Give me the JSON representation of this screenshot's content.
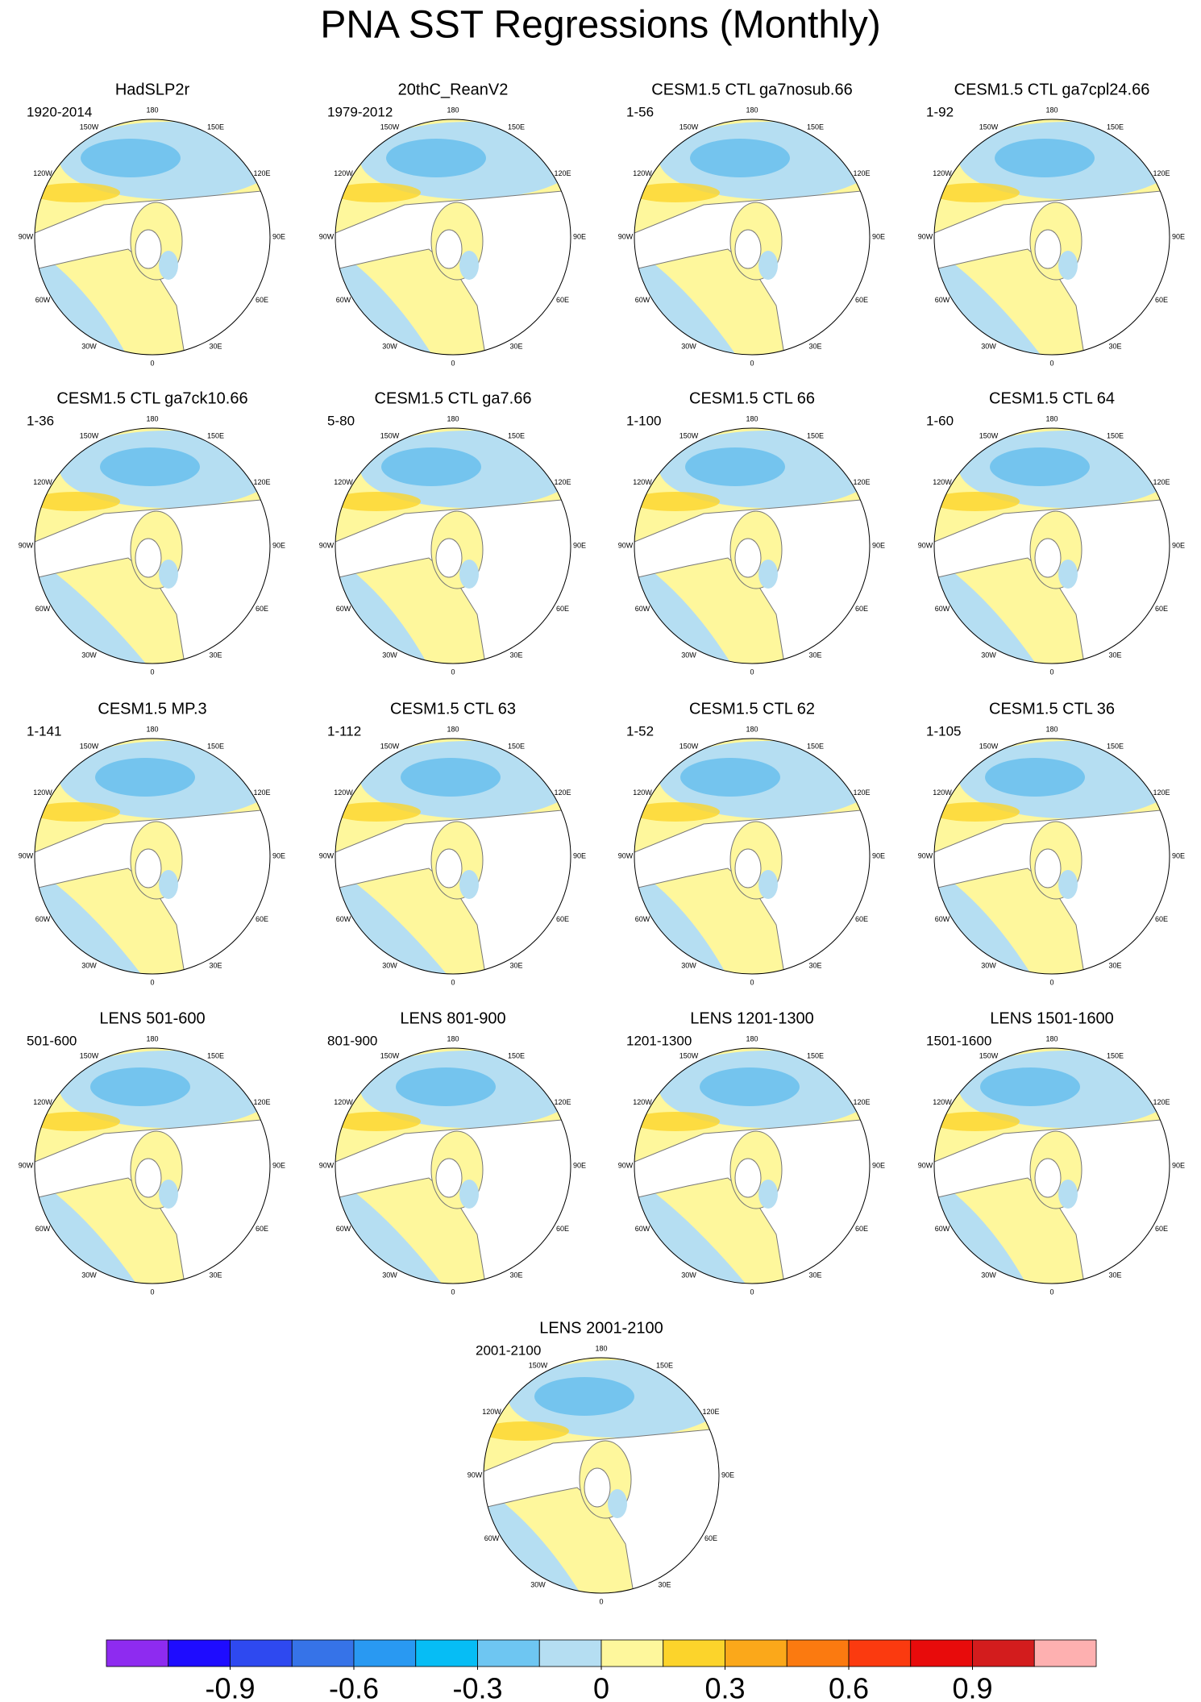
{
  "title": "PNA SST Regressions (Monthly)",
  "longitude_labels": [
    "180",
    "150E",
    "120E",
    "90E",
    "60E",
    "30E",
    "0",
    "30W",
    "60W",
    "90W",
    "120W",
    "150W"
  ],
  "panels": [
    {
      "title": "HadSLP2r",
      "period": "1920-2014"
    },
    {
      "title": "20thC_ReanV2",
      "period": "1979-2012"
    },
    {
      "title": "CESM1.5 CTL ga7nosub.66",
      "period": "1-56"
    },
    {
      "title": "CESM1.5 CTL ga7cpl24.66",
      "period": "1-92"
    },
    {
      "title": "CESM1.5 CTL ga7ck10.66",
      "period": "1-36"
    },
    {
      "title": "CESM1.5 CTL ga7.66",
      "period": "5-80"
    },
    {
      "title": "CESM1.5 CTL 66",
      "period": "1-100"
    },
    {
      "title": "CESM1.5 CTL 64",
      "period": "1-60"
    },
    {
      "title": "CESM1.5 MP.3",
      "period": "1-141"
    },
    {
      "title": "CESM1.5 CTL 63",
      "period": "1-112"
    },
    {
      "title": "CESM1.5 CTL 62",
      "period": "1-52"
    },
    {
      "title": "CESM1.5 CTL 36",
      "period": "1-105"
    },
    {
      "title": "LENS 501-600",
      "period": "501-600"
    },
    {
      "title": "LENS 801-900",
      "period": "801-900"
    },
    {
      "title": "LENS 1201-1300",
      "period": "1201-1300"
    },
    {
      "title": "LENS 1501-1600",
      "period": "1501-1600"
    },
    {
      "title": "LENS 2001-2100",
      "period": "2001-2100"
    }
  ],
  "colorbar": {
    "range": [
      -1.2,
      1.2
    ],
    "colors": [
      "#8e2bf0",
      "#1e0cff",
      "#2e49f0",
      "#3673e8",
      "#2999f2",
      "#06bdf5",
      "#6ec6f2",
      "#b5def2",
      "#fef79c",
      "#fcd42b",
      "#fba81a",
      "#fb7a10",
      "#fb3a0f",
      "#e80b0b",
      "#d31c1d",
      "#feb0b0"
    ],
    "ticks": [
      -0.9,
      -0.6,
      -0.3,
      0,
      0.3,
      0.6,
      0.9
    ]
  }
}
